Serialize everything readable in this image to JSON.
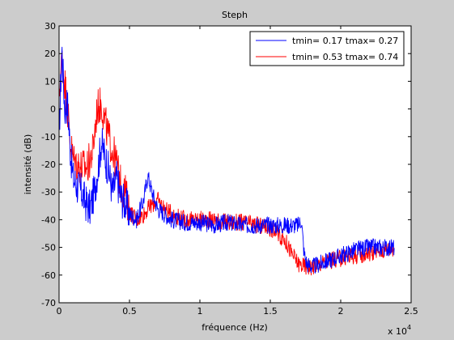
{
  "chart_data": {
    "type": "line",
    "title": "Steph",
    "xlabel": "fréquence (Hz)",
    "ylabel": "intensité (dB)",
    "x_multiplier_label": "x 10",
    "x_multiplier_exponent": "4",
    "xlim": [
      0,
      2.5
    ],
    "ylim": [
      -70,
      30
    ],
    "xticks": [
      0,
      0.5,
      1,
      1.5,
      2,
      2.5
    ],
    "xtick_labels": [
      "0",
      "0.5",
      "1",
      "1.5",
      "2",
      "2.5"
    ],
    "yticks": [
      -70,
      -60,
      -50,
      -40,
      -30,
      -20,
      -10,
      0,
      10,
      20,
      30
    ],
    "ytick_labels": [
      "-70",
      "-60",
      "-50",
      "-40",
      "-30",
      "-20",
      "-10",
      "0",
      "10",
      "20",
      "30"
    ],
    "grid": false,
    "legend_position": "top-right",
    "series": [
      {
        "name": "tmin= 0.17 tmax= 0.27",
        "color": "#0000ff",
        "x": [
          0,
          0.02,
          0.04,
          0.06,
          0.08,
          0.1,
          0.13,
          0.16,
          0.19,
          0.22,
          0.25,
          0.28,
          0.3,
          0.32,
          0.35,
          0.38,
          0.41,
          0.44,
          0.47,
          0.5,
          0.55,
          0.6,
          0.63,
          0.66,
          0.7,
          0.75,
          0.8,
          0.9,
          1.0,
          1.1,
          1.2,
          1.3,
          1.4,
          1.5,
          1.6,
          1.7,
          1.72,
          1.74,
          1.76,
          1.8,
          1.9,
          2.0,
          2.1,
          2.2,
          2.3,
          2.38
        ],
        "values": [
          -10,
          22,
          0,
          2,
          -15,
          -25,
          -28,
          -30,
          -34,
          -36,
          -30,
          -20,
          -12,
          -16,
          -22,
          -30,
          -25,
          -32,
          -34,
          -38,
          -40,
          -33,
          -24,
          -30,
          -36,
          -38,
          -40,
          -41,
          -41,
          -42,
          -41,
          -42,
          -42,
          -42,
          -42,
          -42,
          -40,
          -52,
          -56,
          -57,
          -55,
          -53,
          -51,
          -50,
          -50,
          -50
        ]
      },
      {
        "name": "tmin= 0.53 tmax= 0.74",
        "color": "#ff0000",
        "x": [
          0,
          0.02,
          0.04,
          0.06,
          0.08,
          0.1,
          0.13,
          0.16,
          0.2,
          0.24,
          0.27,
          0.3,
          0.32,
          0.35,
          0.38,
          0.41,
          0.44,
          0.47,
          0.5,
          0.55,
          0.6,
          0.65,
          0.7,
          0.75,
          0.8,
          0.9,
          1.0,
          1.1,
          1.2,
          1.3,
          1.4,
          1.5,
          1.55,
          1.6,
          1.65,
          1.7,
          1.75,
          1.8,
          1.9,
          2.0,
          2.1,
          2.2,
          2.3,
          2.38
        ],
        "values": [
          5,
          18,
          10,
          0,
          -12,
          -18,
          -20,
          -21,
          -21,
          -15,
          0,
          2,
          -3,
          -10,
          -15,
          -20,
          -28,
          -30,
          -37,
          -40,
          -38,
          -35,
          -33,
          -36,
          -38,
          -40,
          -40,
          -40,
          -41,
          -41,
          -42,
          -43,
          -45,
          -47,
          -52,
          -56,
          -57,
          -57,
          -55,
          -54,
          -53,
          -52,
          -51,
          -50
        ]
      }
    ]
  }
}
